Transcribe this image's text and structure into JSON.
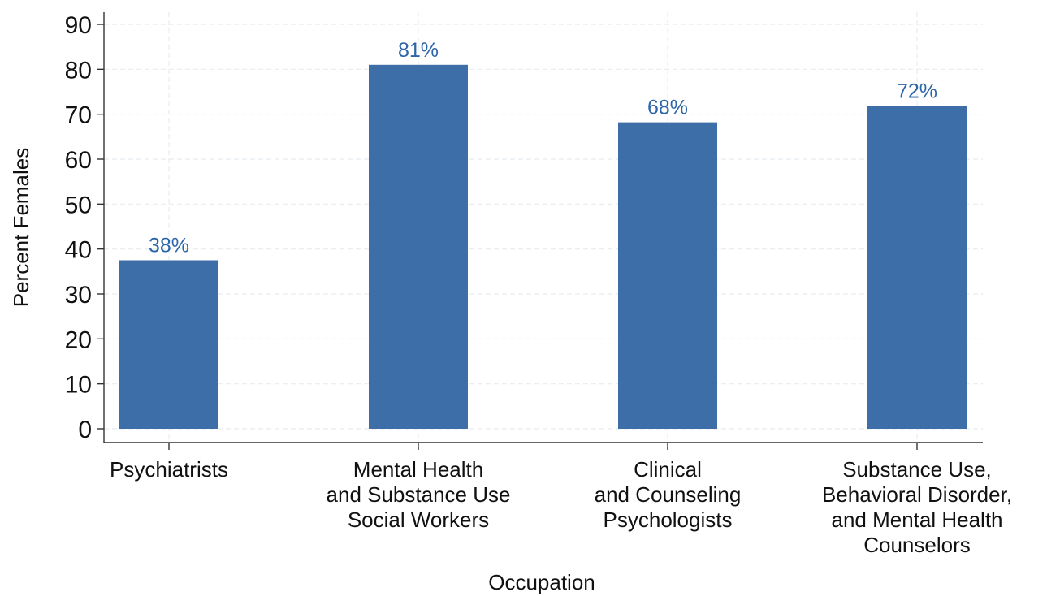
{
  "chart_data": {
    "type": "bar",
    "categories": [
      [
        "Psychiatrists"
      ],
      [
        "Mental Health",
        "and Substance Use",
        "Social Workers"
      ],
      [
        "Clinical",
        "and Counseling",
        "Psychologists"
      ],
      [
        "Substance Use,",
        "Behavioral Disorder,",
        "and Mental Health",
        "Counselors"
      ]
    ],
    "values": [
      37.5,
      81,
      68.2,
      71.8
    ],
    "data_labels": [
      "38%",
      "81%",
      "68%",
      "72%"
    ],
    "xlabel": "Occupation",
    "ylabel": "Percent Females",
    "ylim": [
      0,
      90
    ],
    "yticks": [
      0,
      10,
      20,
      30,
      40,
      50,
      60,
      70,
      80,
      90
    ],
    "grid": true,
    "bar_color": "#3d6ea8",
    "label_color": "#2c65a8"
  }
}
